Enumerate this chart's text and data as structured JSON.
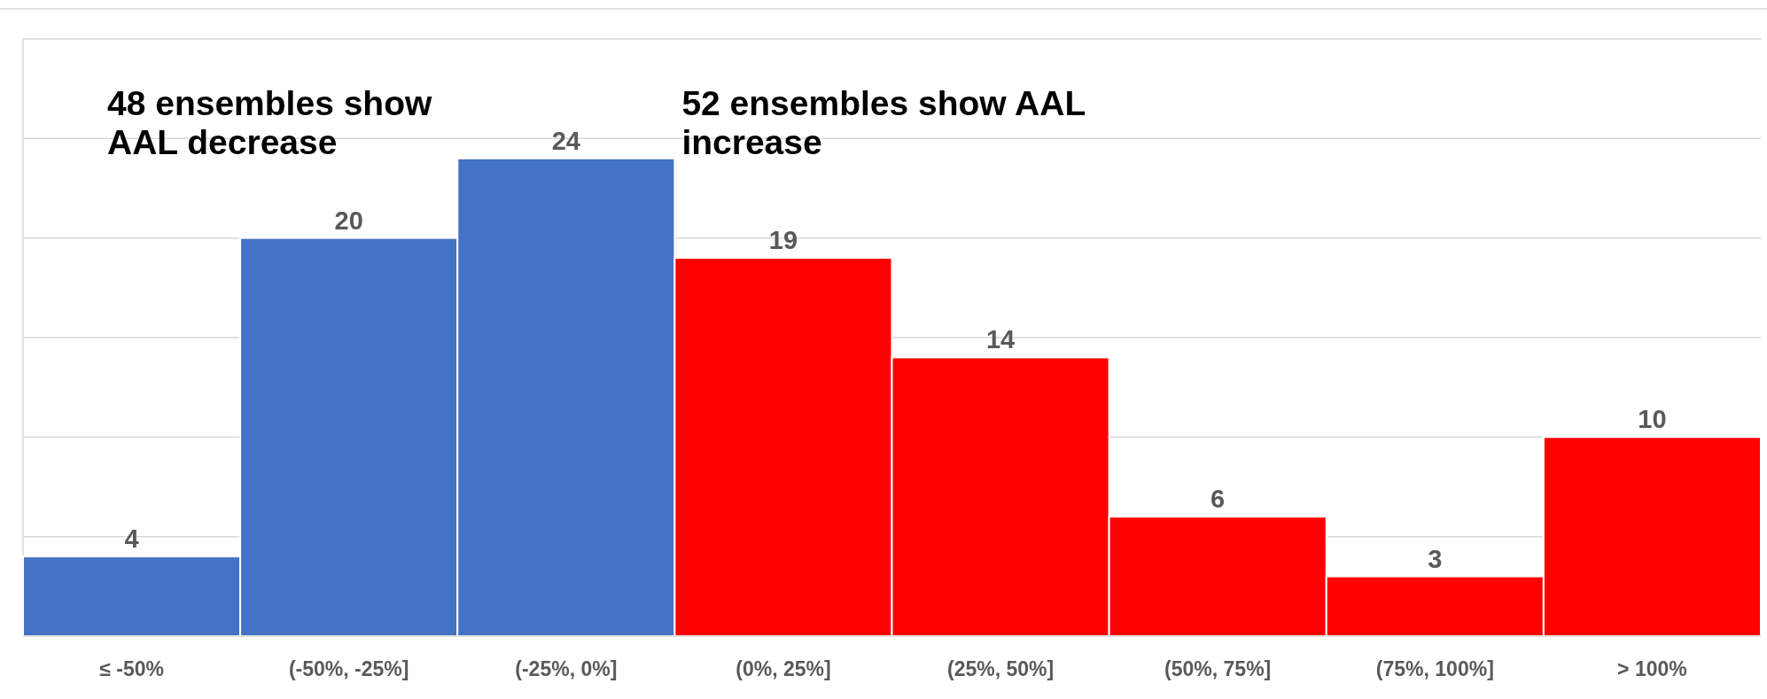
{
  "chart_data": {
    "type": "bar",
    "categories": [
      "≤ -50%",
      "(-50%, -25%]",
      "(-25%, 0%]",
      "(0%, 25%]",
      "(25%, 50%]",
      "(50%, 75%]",
      "(75%, 100%]",
      "> 100%"
    ],
    "values": [
      4,
      20,
      24,
      19,
      14,
      6,
      3,
      10
    ],
    "colors": [
      "#4472c4",
      "#4472c4",
      "#4472c4",
      "#ff0000",
      "#ff0000",
      "#ff0000",
      "#ff0000",
      "#ff0000"
    ],
    "ylim": [
      0,
      30
    ],
    "yticks": [
      {
        "value": 0,
        "label": null
      },
      {
        "value": 5,
        "label": null
      },
      {
        "value": 10,
        "label": null
      },
      {
        "value": 15,
        "label": null
      },
      {
        "value": 20,
        "label": null
      },
      {
        "value": 25,
        "label": null
      },
      {
        "value": 30,
        "label": null
      }
    ],
    "tick_labels": "x",
    "grid": "y",
    "data_labels": true,
    "annotations": [
      "48 ensembles show AAL decrease",
      "52 ensembles show AAL increase"
    ]
  }
}
